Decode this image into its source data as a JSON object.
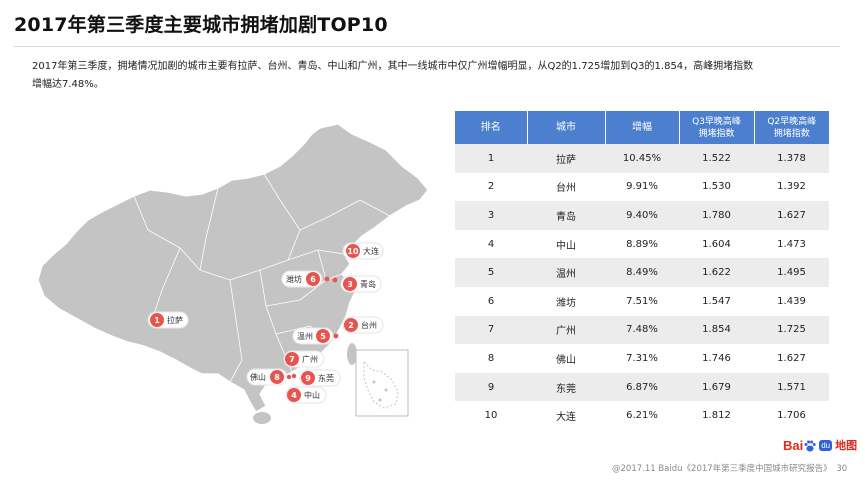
{
  "title": "2017年第三季度主要城市拥堵加剧TOP10",
  "intro": {
    "line1": "2017年第三季度，拥堵情况加剧的城市主要有拉萨、台州、青岛、中山和广州，其中一线城市中仅广州增幅明显，从Q2的1.725增加到Q3的1.854，高峰拥堵指数",
    "line2": "增幅达7.48%。"
  },
  "table": {
    "headers": {
      "rank": "排名",
      "city": "城市",
      "growth": "增幅",
      "q3_line1": "Q3早晚高峰",
      "q3_line2": "拥堵指数",
      "q2_line1": "Q2早晚高峰",
      "q2_line2": "拥堵指数"
    },
    "rows": [
      {
        "rank": "1",
        "city": "拉萨",
        "growth": "10.45%",
        "q3": "1.522",
        "q2": "1.378"
      },
      {
        "rank": "2",
        "city": "台州",
        "growth": "9.91%",
        "q3": "1.530",
        "q2": "1.392"
      },
      {
        "rank": "3",
        "city": "青岛",
        "growth": "9.40%",
        "q3": "1.780",
        "q2": "1.627"
      },
      {
        "rank": "4",
        "city": "中山",
        "growth": "8.89%",
        "q3": "1.604",
        "q2": "1.473"
      },
      {
        "rank": "5",
        "city": "温州",
        "growth": "8.49%",
        "q3": "1.622",
        "q2": "1.495"
      },
      {
        "rank": "6",
        "city": "潍坊",
        "growth": "7.51%",
        "q3": "1.547",
        "q2": "1.439"
      },
      {
        "rank": "7",
        "city": "广州",
        "growth": "7.48%",
        "q3": "1.854",
        "q2": "1.725"
      },
      {
        "rank": "8",
        "city": "佛山",
        "growth": "7.31%",
        "q3": "1.746",
        "q2": "1.627"
      },
      {
        "rank": "9",
        "city": "东莞",
        "growth": "6.87%",
        "q3": "1.679",
        "q2": "1.571"
      },
      {
        "rank": "10",
        "city": "大连",
        "growth": "6.21%",
        "q3": "1.812",
        "q2": "1.706"
      }
    ]
  },
  "map_markers": [
    {
      "num": "1",
      "city": "拉萨"
    },
    {
      "num": "2",
      "city": "台州"
    },
    {
      "num": "3",
      "city": "青岛"
    },
    {
      "num": "4",
      "city": "中山"
    },
    {
      "num": "5",
      "city": "温州"
    },
    {
      "num": "6",
      "city": "潍坊"
    },
    {
      "num": "7",
      "city": "广州"
    },
    {
      "num": "8",
      "city": "佛山"
    },
    {
      "num": "9",
      "city": "东莞"
    },
    {
      "num": "10",
      "city": "大连"
    }
  ],
  "logo": {
    "bai": "Bai",
    "du": "du",
    "ditu": "地图"
  },
  "footer": {
    "text": "@2017.11 Baidu《2017年第三季度中国城市研究报告》",
    "page": "30"
  },
  "colors": {
    "header_blue": "#4c7fce",
    "marker_red": "#e8554e",
    "map_gray": "#bdbdbd",
    "row_gray": "#ececec"
  }
}
